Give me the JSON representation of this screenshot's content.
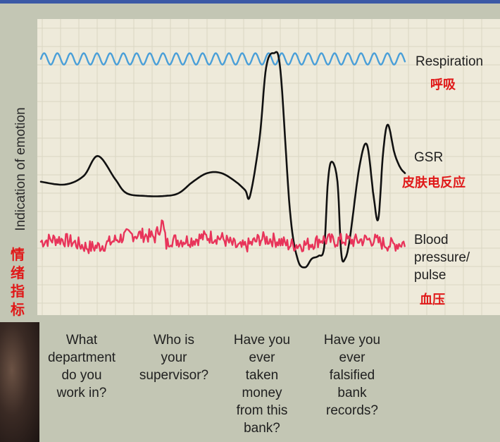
{
  "chart_data": {
    "type": "line",
    "ylabel": "Indication of emotion",
    "ylabel_zh": "情绪指标",
    "x_categories": [
      "What department do you work in?",
      "Who is your supervisor?",
      "Have you ever taken money from this bank?",
      "Have you ever falsified bank records?"
    ],
    "x_categories_display": [
      "What\ndepartment\ndo you\nwork in?",
      "Who is\nyour\nsupervisor?",
      "Have you\never\ntaken\nmoney\nfrom this\nbank?",
      "Have you\never\nfalsified\nbank\nrecords?"
    ],
    "series": [
      {
        "name": "Respiration",
        "name_zh": "呼吸",
        "color": "#4a9fd8",
        "style": "regular-wave",
        "x": [
          0,
          4
        ],
        "y": [
          0.88,
          0.88
        ],
        "amplitude": 0.02
      },
      {
        "name": "GSR",
        "name_zh": "皮肤电反应",
        "color": "#111111",
        "style": "smooth",
        "x": [
          0,
          0.25,
          0.45,
          0.6,
          0.78,
          0.9,
          1.1,
          1.3,
          1.45,
          1.6,
          1.75,
          1.9,
          2.05,
          2.15,
          2.2,
          2.3,
          2.37,
          2.45,
          2.52,
          2.62,
          2.7,
          2.78,
          2.85,
          2.92,
          2.98,
          3.02,
          3.06,
          3.12,
          3.16,
          3.2,
          3.25,
          3.35,
          3.43,
          3.5,
          3.55,
          3.6,
          3.65,
          3.72,
          3.78,
          3.83
        ],
        "y": [
          0.45,
          0.44,
          0.47,
          0.54,
          0.46,
          0.41,
          0.4,
          0.4,
          0.41,
          0.45,
          0.48,
          0.48,
          0.45,
          0.42,
          0.4,
          0.6,
          0.85,
          0.9,
          0.84,
          0.35,
          0.18,
          0.15,
          0.18,
          0.19,
          0.22,
          0.45,
          0.52,
          0.45,
          0.2,
          0.18,
          0.25,
          0.5,
          0.58,
          0.4,
          0.32,
          0.55,
          0.65,
          0.55,
          0.5,
          0.48
        ]
      },
      {
        "name": "Blood pressure/ pulse",
        "name_zh": "血压",
        "color": "#e8345a",
        "style": "jitter",
        "x": [
          0,
          0.5,
          0.9,
          1.2,
          1.28,
          1.32,
          1.36,
          1.6,
          1.9,
          2.1,
          2.3,
          2.6,
          2.8,
          2.95,
          3.1,
          3.3,
          3.5,
          3.7,
          3.83
        ],
        "y": [
          0.24,
          0.23,
          0.25,
          0.26,
          0.32,
          0.24,
          0.26,
          0.24,
          0.25,
          0.23,
          0.25,
          0.22,
          0.24,
          0.26,
          0.24,
          0.23,
          0.25,
          0.24,
          0.24
        ],
        "amplitude": 0.025
      }
    ],
    "grid": true,
    "legend": "right"
  },
  "colors": {
    "paper": "#eeeada",
    "grid": "#d9d6c3",
    "label_zh": "#e01818"
  }
}
